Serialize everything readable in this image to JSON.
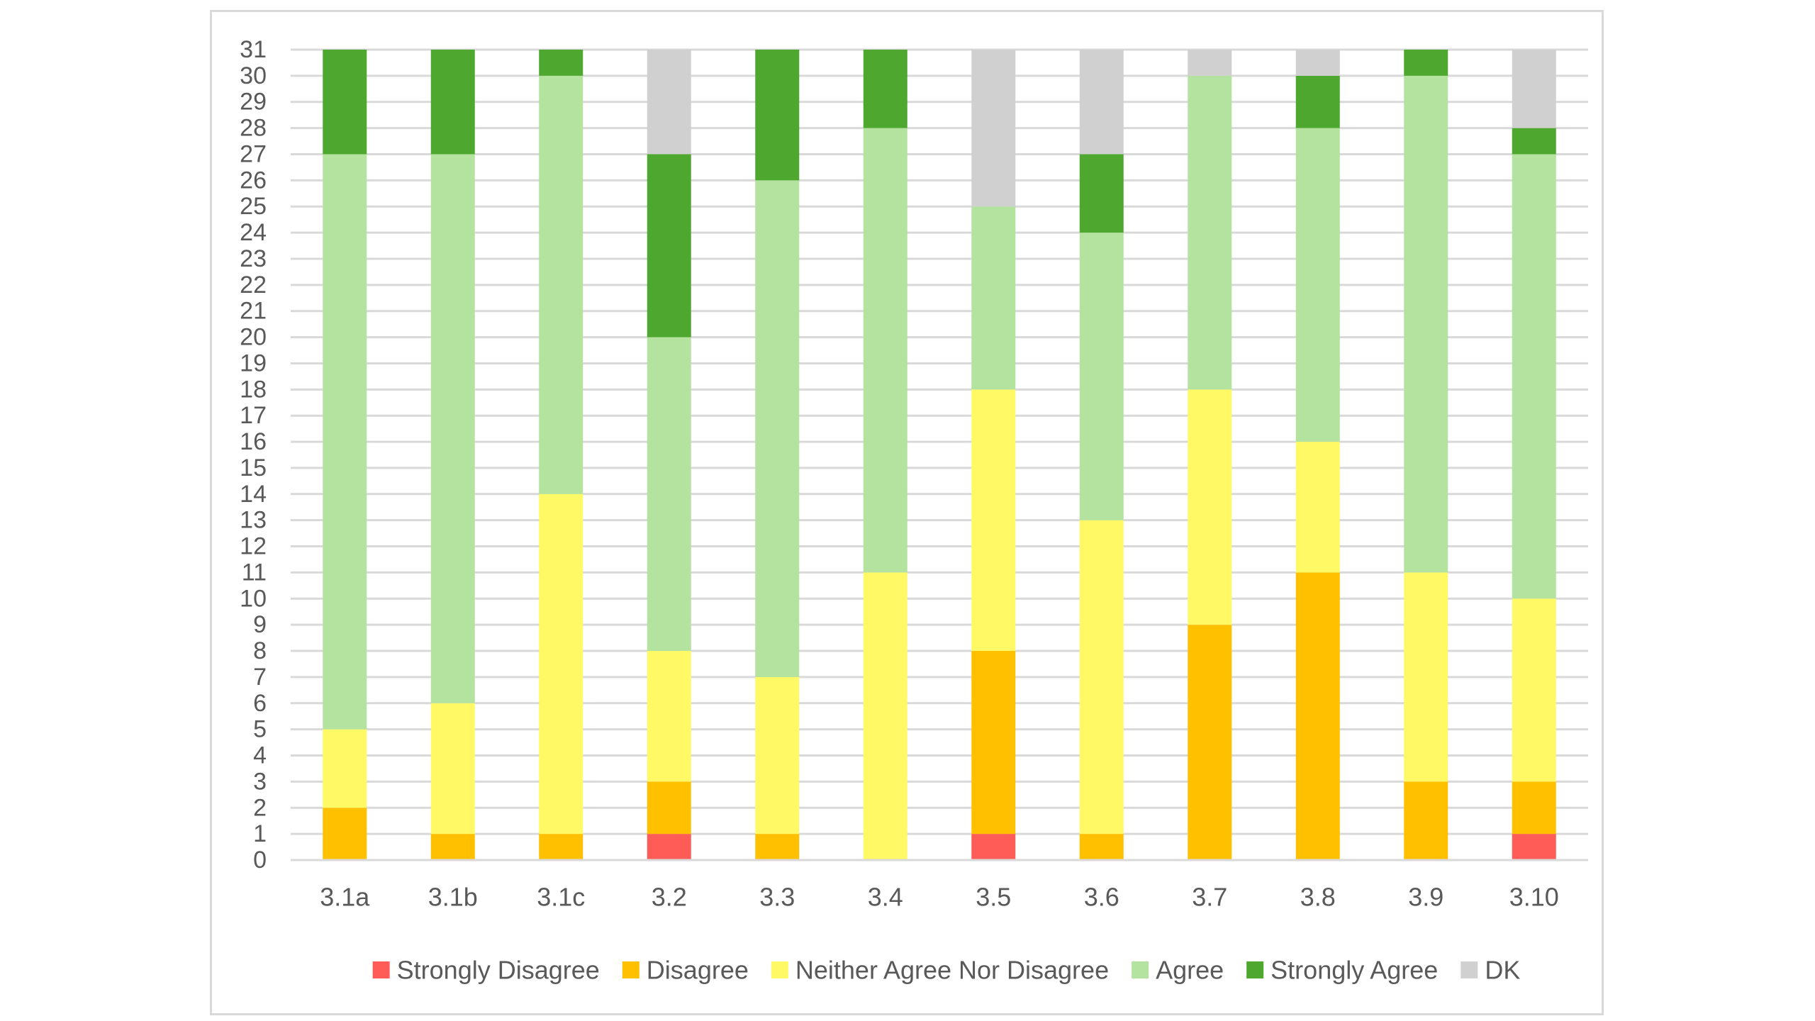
{
  "chart_data": {
    "type": "bar",
    "stacked": true,
    "title": "",
    "xlabel": "",
    "ylabel": "",
    "ylim": [
      0,
      31
    ],
    "yticks": [
      "0",
      "1",
      "2",
      "3",
      "4",
      "5",
      "6",
      "7",
      "8",
      "9",
      "10",
      "11",
      "12",
      "13",
      "14",
      "15",
      "16",
      "17",
      "18",
      "19",
      "20",
      "21",
      "22",
      "23",
      "24",
      "25",
      "26",
      "27",
      "28",
      "29",
      "30",
      "31"
    ],
    "grid": true,
    "legend_position": "bottom",
    "categories": [
      "3.1a",
      "3.1b",
      "3.1c",
      "3.2",
      "3.3",
      "3.4",
      "3.5",
      "3.6",
      "3.7",
      "3.8",
      "3.9",
      "3.10"
    ],
    "series": [
      {
        "name": "Strongly Disagree",
        "color": "#ff5b57",
        "values": [
          0,
          0,
          0,
          1,
          0,
          0,
          1,
          0,
          0,
          0,
          0,
          1
        ]
      },
      {
        "name": "Disagree",
        "color": "#ffc000",
        "values": [
          2,
          1,
          1,
          2,
          1,
          0,
          7,
          1,
          9,
          11,
          3,
          2
        ]
      },
      {
        "name": "Neither Agree Nor Disagree",
        "color": "#fff966",
        "values": [
          3,
          5,
          13,
          5,
          6,
          11,
          10,
          12,
          9,
          5,
          8,
          7
        ]
      },
      {
        "name": "Agree",
        "color": "#b3e39f",
        "values": [
          22,
          21,
          16,
          12,
          19,
          17,
          7,
          11,
          12,
          12,
          19,
          17
        ]
      },
      {
        "name": "Strongly Agree",
        "color": "#4ea72e",
        "values": [
          4,
          4,
          1,
          7,
          5,
          3,
          0,
          3,
          0,
          2,
          1,
          1
        ]
      },
      {
        "name": "DK",
        "color": "#d0d0d0",
        "values": [
          0,
          0,
          0,
          4,
          0,
          0,
          6,
          4,
          1,
          1,
          0,
          3
        ]
      }
    ]
  }
}
